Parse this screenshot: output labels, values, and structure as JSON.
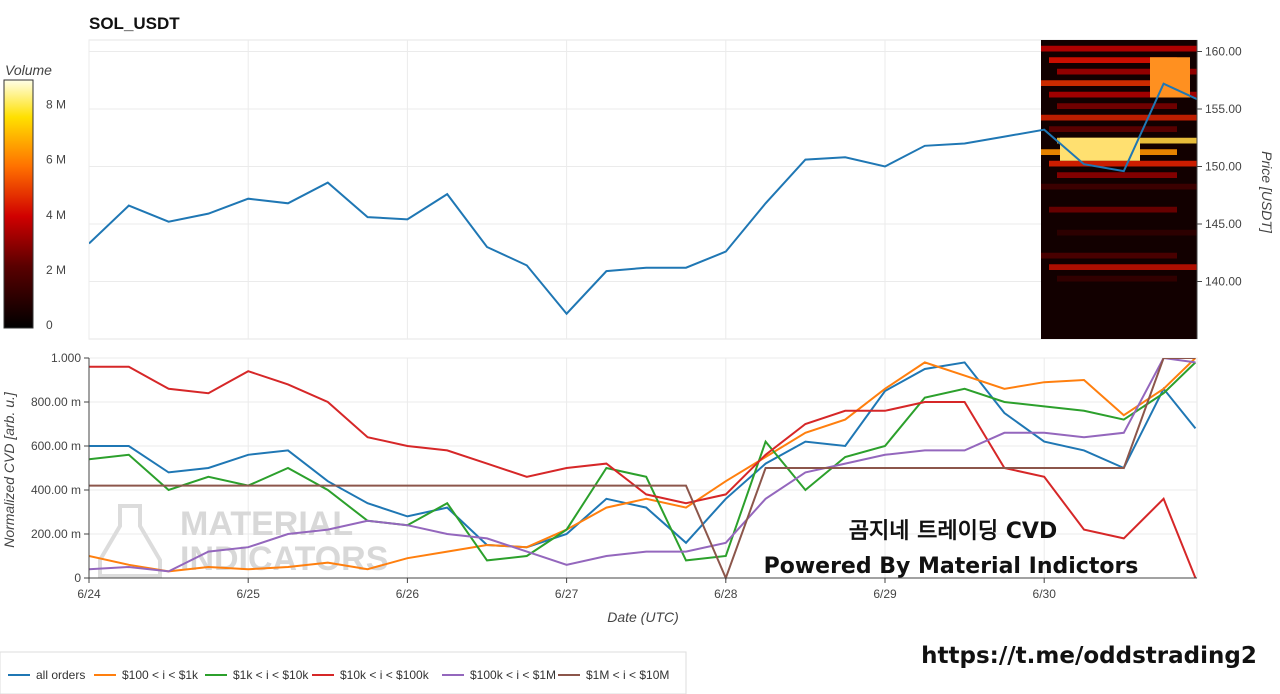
{
  "colors": {
    "all_orders": "#1f77b4",
    "b100_1k": "#ff7f0e",
    "b1k_10k": "#2ca02c",
    "b10k_100k": "#d62728",
    "b100k_1m": "#9467bd",
    "b1m_10m": "#8c564b"
  },
  "overlay": {
    "line1": "곰지네 트레이딩 CVD",
    "line2": "Powered By Material Indictors",
    "link": "https://t.me/oddstrading2",
    "watermark_line1": "MATERIAL",
    "watermark_line2": "INDICATORS"
  },
  "chart_data": [
    {
      "type": "line",
      "title": "SOL_USDT",
      "ylabel": "Price [USDT]",
      "ylim": [
        135,
        161
      ],
      "yticks": [
        "140.00",
        "145.00",
        "150.00",
        "155.00",
        "160.00"
      ],
      "x": [
        "6/24",
        "6/24.25",
        "6/24.5",
        "6/24.75",
        "6/25",
        "6/25.25",
        "6/25.5",
        "6/25.75",
        "6/26",
        "6/26.25",
        "6/26.5",
        "6/26.75",
        "6/27",
        "6/27.25",
        "6/27.5",
        "6/27.75",
        "6/28",
        "6/28.25",
        "6/28.5",
        "6/28.75",
        "6/29",
        "6/29.25",
        "6/29.5",
        "6/29.75",
        "6/30",
        "6/30.25",
        "6/30.5",
        "6/30.75",
        "6/30.95"
      ],
      "series": [
        {
          "values": [
            143.3,
            146.6,
            145.2,
            145.9,
            147.2,
            146.8,
            148.6,
            145.6,
            145.4,
            147.6,
            143.0,
            141.4,
            137.2,
            140.9,
            141.2,
            141.2,
            142.6,
            146.8,
            150.6,
            150.8,
            150.0,
            151.8,
            152.0,
            152.6,
            153.2,
            150.2,
            149.6,
            157.2,
            155.6
          ]
        }
      ],
      "heatmap_colorbar": {
        "title": "Volume",
        "ticks": [
          "0",
          "2 M",
          "4 M",
          "6 M",
          "8 M"
        ]
      }
    },
    {
      "type": "line",
      "xlabel": "Date (UTC)",
      "ylabel": "Normalized CVD [arb. u.]",
      "ylim": [
        0,
        1
      ],
      "yticks": [
        "0",
        "200.00 m",
        "400.00 m",
        "600.00 m",
        "800.00 m",
        "1.000"
      ],
      "xticks": [
        "6/24",
        "6/25",
        "6/26",
        "6/27",
        "6/28",
        "6/29",
        "6/30"
      ],
      "x": [
        0,
        0.25,
        0.5,
        0.75,
        1,
        1.25,
        1.5,
        1.75,
        2,
        2.25,
        2.5,
        2.75,
        3,
        3.25,
        3.5,
        3.75,
        4,
        4.25,
        4.5,
        4.75,
        5,
        5.25,
        5.5,
        5.75,
        6,
        6.25,
        6.5,
        6.75,
        6.95
      ],
      "series": [
        {
          "name": "all orders",
          "values": [
            0.6,
            0.6,
            0.48,
            0.5,
            0.56,
            0.58,
            0.44,
            0.34,
            0.28,
            0.32,
            0.15,
            0.14,
            0.2,
            0.36,
            0.32,
            0.16,
            0.36,
            0.52,
            0.62,
            0.6,
            0.85,
            0.95,
            0.98,
            0.75,
            0.62,
            0.58,
            0.5,
            0.86,
            0.68
          ]
        },
        {
          "name": "$100 < i < $1k",
          "values": [
            0.1,
            0.06,
            0.03,
            0.05,
            0.04,
            0.05,
            0.07,
            0.04,
            0.09,
            0.12,
            0.15,
            0.14,
            0.22,
            0.32,
            0.36,
            0.32,
            0.44,
            0.55,
            0.66,
            0.72,
            0.86,
            0.98,
            0.92,
            0.86,
            0.89,
            0.9,
            0.74,
            0.86,
            1.0
          ]
        },
        {
          "name": "$1k < i < $10k",
          "values": [
            0.54,
            0.56,
            0.4,
            0.46,
            0.42,
            0.5,
            0.4,
            0.26,
            0.24,
            0.34,
            0.08,
            0.1,
            0.22,
            0.5,
            0.46,
            0.08,
            0.1,
            0.62,
            0.4,
            0.55,
            0.6,
            0.82,
            0.86,
            0.8,
            0.78,
            0.76,
            0.72,
            0.84,
            0.98
          ]
        },
        {
          "name": "$10k < i < $100k",
          "values": [
            0.96,
            0.96,
            0.86,
            0.84,
            0.94,
            0.88,
            0.8,
            0.64,
            0.6,
            0.58,
            0.52,
            0.46,
            0.5,
            0.52,
            0.38,
            0.34,
            0.38,
            0.56,
            0.7,
            0.76,
            0.76,
            0.8,
            0.8,
            0.5,
            0.46,
            0.22,
            0.18,
            0.36,
            0.0
          ]
        },
        {
          "name": "$100k < i < $1M",
          "values": [
            0.04,
            0.05,
            0.03,
            0.12,
            0.14,
            0.2,
            0.22,
            0.26,
            0.24,
            0.2,
            0.18,
            0.12,
            0.06,
            0.1,
            0.12,
            0.12,
            0.16,
            0.36,
            0.48,
            0.52,
            0.56,
            0.58,
            0.58,
            0.66,
            0.66,
            0.64,
            0.66,
            1.0,
            0.98
          ]
        },
        {
          "name": "$1M < i < $10M",
          "values": [
            0.42,
            0.42,
            0.42,
            0.42,
            0.42,
            0.42,
            0.42,
            0.42,
            0.42,
            0.42,
            0.42,
            0.42,
            0.42,
            0.42,
            0.42,
            0.42,
            0.0,
            0.5,
            0.5,
            0.5,
            0.5,
            0.5,
            0.5,
            0.5,
            0.5,
            0.5,
            0.5,
            1.0,
            1.0
          ]
        }
      ]
    }
  ]
}
